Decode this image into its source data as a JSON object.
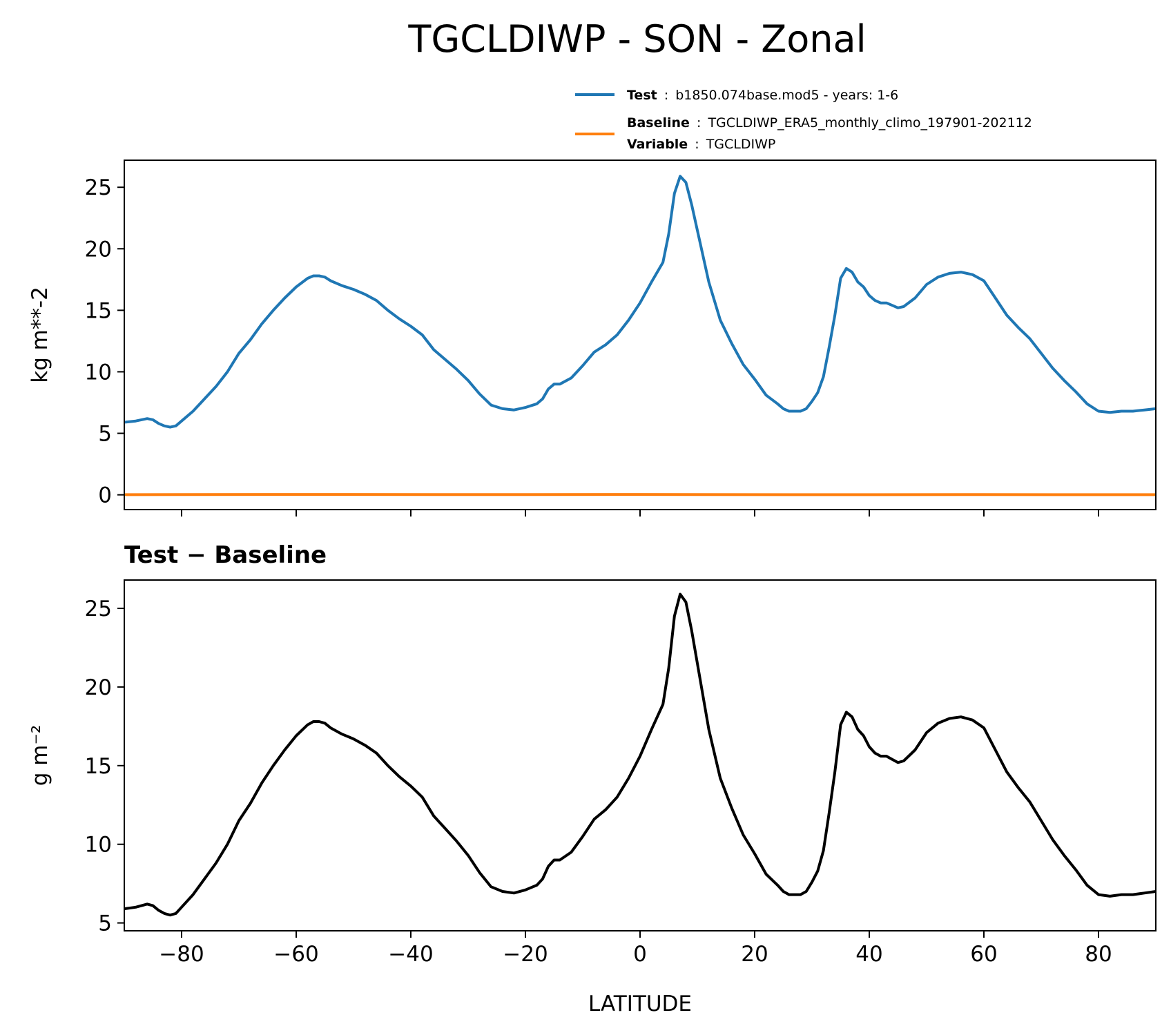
{
  "figure_title": "TGCLDIWP - SON - Zonal",
  "legend": {
    "test_key": "Test",
    "test_value": "b1850.074base.mod5 - years: 1-6",
    "baseline_key": "Baseline",
    "baseline_value": "TGCLDIWP_ERA5_monthly_climo_197901-202112",
    "variable_key": "Variable",
    "variable_value": "TGCLDIWP",
    "separator": ":"
  },
  "colors": {
    "test": "#1f77b4",
    "baseline": "#ff7f0e",
    "difference": "#000000"
  },
  "chart_data": [
    {
      "type": "line",
      "title": "",
      "xlabel": "",
      "ylabel": "kg m**-2",
      "xlim": [
        -90,
        90
      ],
      "ylim": [
        -1.2,
        27.2
      ],
      "xticks": [
        -80,
        -60,
        -40,
        -20,
        0,
        20,
        40,
        60,
        80
      ],
      "xtick_labels_shown": false,
      "yticks": [
        0,
        5,
        10,
        15,
        20,
        25
      ],
      "ytick_labels": [
        "0",
        "5",
        "10",
        "15",
        "20",
        "25"
      ],
      "series": [
        {
          "name": "Test",
          "x": [
            -90,
            -88,
            -86,
            -85,
            -84,
            -83,
            -82,
            -81,
            -80,
            -78,
            -76,
            -74,
            -72,
            -70,
            -68,
            -66,
            -64,
            -62,
            -60,
            -58,
            -57,
            -56,
            -55,
            -54,
            -52,
            -50,
            -48,
            -46,
            -44,
            -42,
            -40,
            -38,
            -36,
            -34,
            -32,
            -30,
            -28,
            -26,
            -24,
            -22,
            -20,
            -18,
            -17,
            -16,
            -15,
            -14,
            -12,
            -10,
            -8,
            -6,
            -4,
            -2,
            0,
            2,
            4,
            5,
            6,
            7,
            8,
            9,
            10,
            12,
            14,
            16,
            18,
            20,
            22,
            24,
            25,
            26,
            28,
            29,
            30,
            31,
            32,
            33,
            34,
            35,
            36,
            37,
            38,
            39,
            40,
            41,
            42,
            43,
            44,
            45,
            46,
            48,
            50,
            52,
            54,
            56,
            58,
            60,
            62,
            64,
            66,
            68,
            70,
            72,
            74,
            76,
            78,
            80,
            82,
            84,
            86,
            88,
            90
          ],
          "y": [
            5.9,
            6.0,
            6.2,
            6.1,
            5.8,
            5.6,
            5.5,
            5.6,
            6.0,
            6.8,
            7.8,
            8.8,
            10.0,
            11.5,
            12.6,
            13.9,
            15.0,
            16.0,
            16.9,
            17.6,
            17.8,
            17.8,
            17.7,
            17.4,
            17.0,
            16.7,
            16.3,
            15.8,
            15.0,
            14.3,
            13.7,
            13.0,
            11.8,
            11.0,
            10.2,
            9.3,
            8.2,
            7.3,
            7.0,
            6.9,
            7.1,
            7.4,
            7.8,
            8.6,
            9.0,
            9.0,
            9.5,
            10.5,
            11.6,
            12.2,
            13.0,
            14.2,
            15.6,
            17.3,
            18.9,
            21.2,
            24.5,
            25.9,
            25.4,
            23.6,
            21.5,
            17.3,
            14.2,
            12.3,
            10.6,
            9.4,
            8.1,
            7.4,
            7.0,
            6.8,
            6.8,
            7.0,
            7.6,
            8.3,
            9.6,
            12.0,
            14.6,
            17.6,
            18.4,
            18.1,
            17.3,
            16.9,
            16.2,
            15.8,
            15.6,
            15.6,
            15.4,
            15.2,
            15.3,
            16.0,
            17.1,
            17.7,
            18.0,
            18.1,
            17.9,
            17.4,
            16.0,
            14.6,
            13.6,
            12.7,
            11.5,
            10.3,
            9.3,
            8.4,
            7.4,
            6.8,
            6.7,
            6.8,
            6.8,
            6.9,
            7.0
          ]
        },
        {
          "name": "Baseline",
          "x": [
            -90,
            -60,
            -30,
            0,
            30,
            60,
            90
          ],
          "y": [
            0.01,
            0.03,
            0.02,
            0.03,
            0.01,
            0.02,
            0.01
          ]
        }
      ]
    },
    {
      "type": "line",
      "title": "Test − Baseline",
      "xlabel": "LATITUDE",
      "ylabel": "g m⁻²",
      "xlim": [
        -90,
        90
      ],
      "ylim": [
        4.5,
        26.8
      ],
      "xticks": [
        -80,
        -60,
        -40,
        -20,
        0,
        20,
        40,
        60,
        80
      ],
      "xtick_labels": [
        "−80",
        "−60",
        "−40",
        "−20",
        "0",
        "20",
        "40",
        "60",
        "80"
      ],
      "yticks": [
        5,
        10,
        15,
        20,
        25
      ],
      "ytick_labels": [
        "5",
        "10",
        "15",
        "20",
        "25"
      ],
      "series": [
        {
          "x": [
            -90,
            -88,
            -86,
            -85,
            -84,
            -83,
            -82,
            -81,
            -80,
            -78,
            -76,
            -74,
            -72,
            -70,
            -68,
            -66,
            -64,
            -62,
            -60,
            -58,
            -57,
            -56,
            -55,
            -54,
            -52,
            -50,
            -48,
            -46,
            -44,
            -42,
            -40,
            -38,
            -36,
            -34,
            -32,
            -30,
            -28,
            -26,
            -24,
            -22,
            -20,
            -18,
            -17,
            -16,
            -15,
            -14,
            -12,
            -10,
            -8,
            -6,
            -4,
            -2,
            0,
            2,
            4,
            5,
            6,
            7,
            8,
            9,
            10,
            12,
            14,
            16,
            18,
            20,
            22,
            24,
            25,
            26,
            28,
            29,
            30,
            31,
            32,
            33,
            34,
            35,
            36,
            37,
            38,
            39,
            40,
            41,
            42,
            43,
            44,
            45,
            46,
            48,
            50,
            52,
            54,
            56,
            58,
            60,
            62,
            64,
            66,
            68,
            70,
            72,
            74,
            76,
            78,
            80,
            82,
            84,
            86,
            88,
            90
          ],
          "y": [
            5.9,
            6.0,
            6.2,
            6.1,
            5.8,
            5.6,
            5.5,
            5.6,
            6.0,
            6.8,
            7.8,
            8.8,
            10.0,
            11.5,
            12.6,
            13.9,
            15.0,
            16.0,
            16.9,
            17.6,
            17.8,
            17.8,
            17.7,
            17.4,
            17.0,
            16.7,
            16.3,
            15.8,
            15.0,
            14.3,
            13.7,
            13.0,
            11.8,
            11.0,
            10.2,
            9.3,
            8.2,
            7.3,
            7.0,
            6.9,
            7.1,
            7.4,
            7.8,
            8.6,
            9.0,
            9.0,
            9.5,
            10.5,
            11.6,
            12.2,
            13.0,
            14.2,
            15.6,
            17.3,
            18.9,
            21.2,
            24.5,
            25.9,
            25.4,
            23.6,
            21.5,
            17.3,
            14.2,
            12.3,
            10.6,
            9.4,
            8.1,
            7.4,
            7.0,
            6.8,
            6.8,
            7.0,
            7.6,
            8.3,
            9.6,
            12.0,
            14.6,
            17.6,
            18.4,
            18.1,
            17.3,
            16.9,
            16.2,
            15.8,
            15.6,
            15.6,
            15.4,
            15.2,
            15.3,
            16.0,
            17.1,
            17.7,
            18.0,
            18.1,
            17.9,
            17.4,
            16.0,
            14.6,
            13.6,
            12.7,
            11.5,
            10.3,
            9.3,
            8.4,
            7.4,
            6.8,
            6.7,
            6.8,
            6.8,
            6.9,
            7.0
          ]
        }
      ]
    }
  ]
}
